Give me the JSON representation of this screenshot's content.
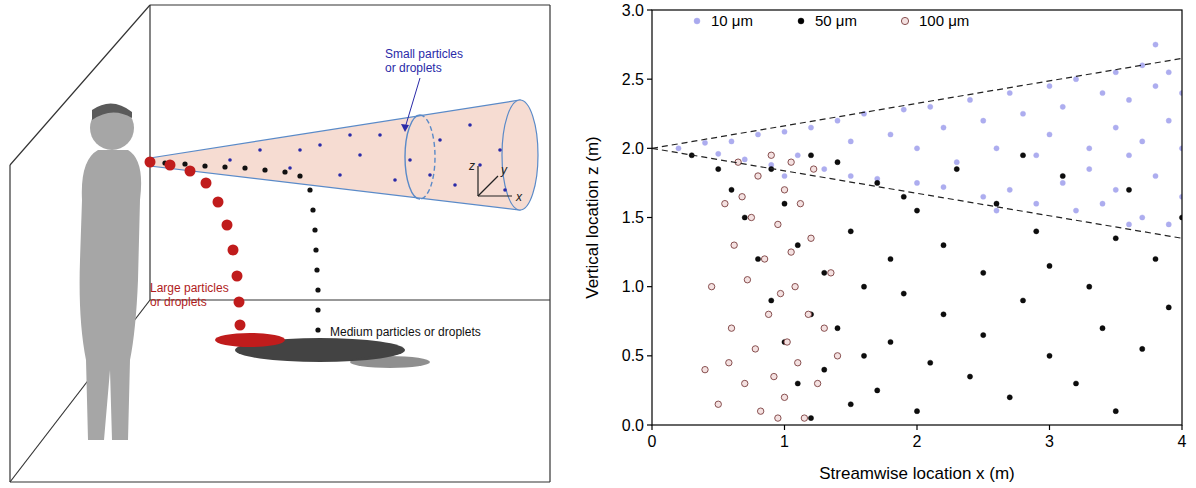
{
  "diagram": {
    "labels": [
      {
        "text": "Small particles or droplets",
        "color": "#2a2aa8"
      },
      {
        "text": "Large particles or droplets",
        "color": "#b01c1c"
      },
      {
        "text": "Medium particles or droplets",
        "color": "#111111"
      }
    ],
    "axes": [
      "x",
      "y",
      "z"
    ]
  },
  "chart_data": {
    "type": "scatter",
    "x_label": "Streamwise location x (m)",
    "y_label": "Vertical location z (m)",
    "xlim": [
      0,
      4
    ],
    "xticks": [
      0,
      1,
      2,
      3,
      4
    ],
    "ylim": [
      0,
      3
    ],
    "yticks": [
      {
        "value": 0,
        "label": "0.0"
      },
      0.5,
      {
        "value": 1,
        "label": "1.0"
      },
      1.5,
      {
        "value": 2,
        "label": "2.0"
      },
      2.5,
      {
        "value": 3,
        "label": "3.0"
      }
    ],
    "grid": false,
    "legend": "top",
    "boundary_lines": [
      {
        "line_style": "dashed",
        "x": [
          0,
          4
        ],
        "values": [
          2,
          2.65
        ]
      },
      {
        "line_style": "dashed",
        "x": [
          0,
          4
        ],
        "values": [
          2,
          1.35
        ]
      }
    ],
    "series": [
      {
        "name": "10 μm",
        "color": "#a9a9ee",
        "marker": "circle",
        "x": [
          0.2,
          0.4,
          0.5,
          0.6,
          0.7,
          0.8,
          0.9,
          1.0,
          1.1,
          1.2,
          1.3,
          1.4,
          1.5,
          1.5,
          1.6,
          1.7,
          1.8,
          1.9,
          2.0,
          2.0,
          2.1,
          2.2,
          2.2,
          2.3,
          2.4,
          2.5,
          2.5,
          2.6,
          2.7,
          2.7,
          2.8,
          2.9,
          2.9,
          3.0,
          3.0,
          3.1,
          3.1,
          3.2,
          3.2,
          3.3,
          3.3,
          3.4,
          3.4,
          3.5,
          3.5,
          3.5,
          3.6,
          3.6,
          3.7,
          3.7,
          3.7,
          3.8,
          3.8,
          3.8,
          3.9,
          3.9,
          3.9,
          4.0,
          4.0,
          4.0,
          1.0,
          2.6,
          3.6
        ],
        "values": [
          2.0,
          2.04,
          1.96,
          2.05,
          1.92,
          2.1,
          1.88,
          2.12,
          1.95,
          2.15,
          1.85,
          2.2,
          1.8,
          2.05,
          2.25,
          1.78,
          2.1,
          2.28,
          1.75,
          2.0,
          2.3,
          1.72,
          2.15,
          1.9,
          2.35,
          1.65,
          2.2,
          2.0,
          2.4,
          1.7,
          2.25,
          1.6,
          1.95,
          2.45,
          2.1,
          1.75,
          2.3,
          1.55,
          2.5,
          2.0,
          1.85,
          2.4,
          1.6,
          2.55,
          2.15,
          1.7,
          1.95,
          2.35,
          1.5,
          2.6,
          2.05,
          1.8,
          2.45,
          2.75,
          1.45,
          2.2,
          2.55,
          1.65,
          2.0,
          2.4,
          1.8,
          1.55,
          1.45
        ]
      },
      {
        "name": "50 μm",
        "color": "#000000",
        "marker": "circle",
        "x": [
          0.3,
          0.5,
          0.6,
          0.7,
          0.8,
          0.9,
          1.0,
          1.0,
          1.1,
          1.1,
          1.2,
          1.2,
          1.3,
          1.3,
          1.4,
          1.4,
          1.5,
          1.5,
          1.6,
          1.6,
          1.7,
          1.7,
          1.8,
          1.8,
          1.9,
          2.0,
          2.0,
          2.1,
          2.2,
          2.2,
          2.3,
          2.4,
          2.5,
          2.5,
          2.6,
          2.7,
          2.8,
          2.9,
          3.0,
          3.0,
          3.1,
          3.2,
          3.3,
          3.4,
          3.5,
          3.5,
          3.6,
          3.7,
          3.8,
          3.9,
          4.0,
          0.9,
          1.2,
          1.9,
          2.8
        ],
        "values": [
          1.95,
          1.85,
          1.7,
          1.5,
          1.2,
          0.9,
          0.6,
          1.6,
          0.3,
          1.3,
          0.05,
          0.8,
          1.1,
          0.4,
          1.9,
          0.7,
          0.15,
          1.4,
          1.0,
          0.5,
          1.75,
          0.25,
          1.2,
          0.6,
          0.95,
          1.55,
          0.1,
          0.45,
          1.3,
          0.8,
          1.85,
          0.35,
          1.1,
          0.65,
          1.6,
          0.2,
          0.9,
          1.4,
          0.5,
          1.15,
          1.8,
          0.3,
          1.0,
          0.7,
          1.35,
          0.1,
          1.7,
          0.55,
          1.2,
          0.85,
          1.5,
          1.85,
          1.95,
          1.65,
          1.95
        ]
      },
      {
        "name": "100 μm",
        "color": "#7a3e3e",
        "marker": "open-circle",
        "x": [
          0.4,
          0.45,
          0.5,
          0.55,
          0.6,
          0.62,
          0.65,
          0.7,
          0.72,
          0.75,
          0.78,
          0.8,
          0.82,
          0.85,
          0.88,
          0.9,
          0.92,
          0.95,
          0.97,
          1.0,
          1.0,
          1.02,
          1.05,
          1.08,
          1.1,
          1.12,
          1.15,
          1.18,
          1.2,
          1.22,
          1.25,
          1.3,
          1.35,
          1.4,
          0.68,
          0.58,
          0.95,
          1.05
        ],
        "values": [
          0.4,
          1.0,
          0.15,
          1.6,
          0.7,
          1.3,
          1.9,
          0.3,
          1.05,
          1.5,
          0.55,
          1.8,
          0.1,
          1.2,
          0.8,
          1.95,
          0.35,
          1.45,
          0.95,
          1.7,
          0.2,
          0.6,
          1.25,
          1.0,
          0.45,
          1.6,
          0.05,
          0.8,
          1.35,
          1.85,
          0.3,
          0.7,
          1.1,
          0.5,
          1.65,
          0.45,
          0.05,
          1.9
        ]
      }
    ]
  }
}
